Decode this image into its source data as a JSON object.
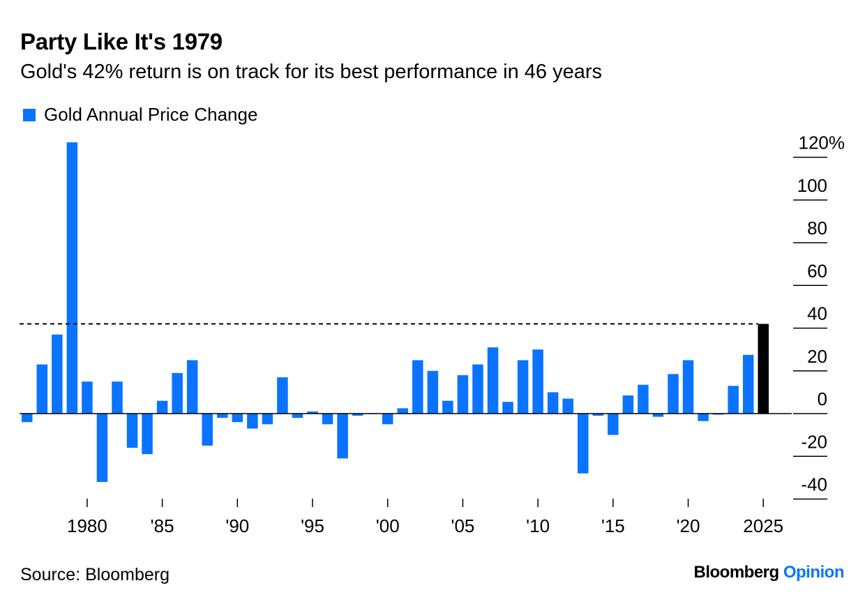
{
  "title": "Party Like It's 1979",
  "subtitle": "Gold's 42% return is on track for its best performance in 46 years",
  "legend": {
    "label": "Gold Annual Price Change",
    "color": "#0A73FF"
  },
  "source": "Source: Bloomberg",
  "brand": {
    "name": "Bloomberg",
    "suffix": "Opinion",
    "name_color": "#000000",
    "suffix_color": "#0A73FF"
  },
  "colors": {
    "bar": "#0A73FF",
    "highlight": "#000000",
    "axis": "#000000"
  },
  "chart_data": {
    "type": "bar",
    "x": [
      1976,
      1977,
      1978,
      1979,
      1980,
      1981,
      1982,
      1983,
      1984,
      1985,
      1986,
      1987,
      1988,
      1989,
      1990,
      1991,
      1992,
      1993,
      1994,
      1995,
      1996,
      1997,
      1998,
      1999,
      2000,
      2001,
      2002,
      2003,
      2004,
      2005,
      2006,
      2007,
      2008,
      2009,
      2010,
      2011,
      2012,
      2013,
      2014,
      2015,
      2016,
      2017,
      2018,
      2019,
      2020,
      2021,
      2022,
      2023,
      2024,
      2025
    ],
    "values": [
      -4,
      23,
      37,
      127,
      15,
      -32,
      15,
      -16,
      -19,
      6,
      19,
      25,
      -15,
      -2,
      -4,
      -7,
      -5,
      17,
      -2,
      1,
      -5,
      -21,
      -1,
      0,
      -5,
      2.5,
      25,
      20,
      6,
      18,
      23,
      31,
      5.5,
      25,
      30,
      10,
      7,
      -28,
      -1,
      -10,
      8.5,
      13.5,
      -1.5,
      18.5,
      25,
      -3.5,
      -0.5,
      13,
      27.5,
      42
    ],
    "highlight_index": 49,
    "reference_value": 42,
    "reference_line_style": "dashed",
    "x_tick_values": [
      1980,
      1985,
      1990,
      1995,
      2000,
      2005,
      2010,
      2015,
      2020,
      2025
    ],
    "x_tick_labels": [
      "1980",
      "'85",
      "'90",
      "'95",
      "'00",
      "'05",
      "'10",
      "'15",
      "'20",
      "2025"
    ],
    "y_tick_values": [
      120,
      100,
      80,
      60,
      40,
      20,
      0,
      -20,
      -40
    ],
    "y_tick_labels": [
      "120%",
      "100",
      "80",
      "60",
      "40",
      "20",
      "0",
      "-20",
      "-40"
    ],
    "ylim": [
      -40,
      127
    ],
    "y_axis_position": "right",
    "grid": false
  }
}
